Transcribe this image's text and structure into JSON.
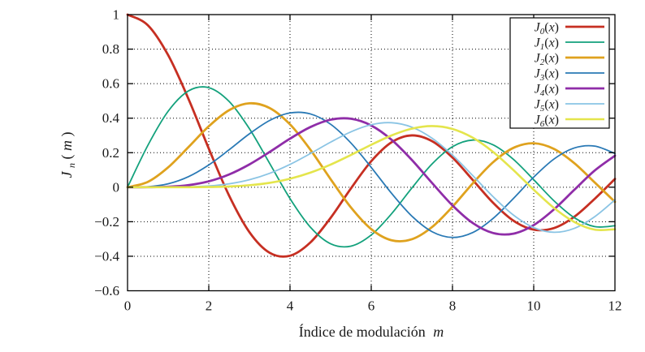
{
  "figure": {
    "background": "#ffffff",
    "border_color": "#000000",
    "grid_color": "#000000",
    "text_color": "#1a1a1a"
  },
  "chart_data": {
    "type": "line",
    "title": "",
    "xlabel": {
      "text": "Índice de modulación",
      "var": "m"
    },
    "ylabel": {
      "base": "J",
      "sub": "n",
      "open": "(",
      "var": "m",
      "close": ")"
    },
    "xlim": [
      0,
      12
    ],
    "ylim": [
      -0.6,
      1
    ],
    "grid": "dotted major gridlines both axes",
    "legend_position": "top-right boxed",
    "xticks": {
      "values": [
        0,
        2,
        4,
        6,
        8,
        10,
        12
      ],
      "labels": [
        "0",
        "2",
        "4",
        "6",
        "8",
        "10",
        "12"
      ]
    },
    "yticks": {
      "values": [
        1,
        0.8,
        0.6,
        0.4,
        0.2,
        0,
        -0.2,
        -0.4,
        -0.6
      ],
      "labels": [
        "1",
        "0.8",
        "0.6",
        "0.4",
        "0.2",
        "0",
        "−0.2",
        "−0.4",
        "−0.6"
      ]
    },
    "x": [
      0,
      0.5,
      1,
      1.5,
      2,
      2.5,
      3,
      3.5,
      4,
      4.5,
      5,
      5.5,
      6,
      6.5,
      7,
      7.5,
      8,
      8.5,
      9,
      9.5,
      10,
      10.5,
      11,
      11.5,
      12
    ],
    "series": [
      {
        "label": {
          "base": "J",
          "sub": "0",
          "open": "(",
          "var": "x",
          "close": ")"
        },
        "color": "#c62f22",
        "width": 2.8,
        "values": [
          1.0,
          0.9385,
          0.7652,
          0.5118,
          0.2239,
          -0.0484,
          -0.2601,
          -0.3801,
          -0.3971,
          -0.3205,
          -0.1776,
          -0.0068,
          0.1506,
          0.2601,
          0.3001,
          0.2663,
          0.1717,
          0.0419,
          -0.0903,
          -0.1939,
          -0.2459,
          -0.2366,
          -0.1712,
          -0.0677,
          0.0477
        ]
      },
      {
        "label": {
          "base": "J",
          "sub": "1",
          "open": "(",
          "var": "x",
          "close": ")"
        },
        "color": "#13a17c",
        "width": 1.8,
        "values": [
          0,
          0.2423,
          0.4401,
          0.5579,
          0.5767,
          0.4971,
          0.3391,
          0.1374,
          -0.066,
          -0.2311,
          -0.3276,
          -0.3414,
          -0.2767,
          -0.1538,
          -0.0047,
          0.1352,
          0.2346,
          0.2731,
          0.2453,
          0.1613,
          0.0435,
          -0.0789,
          -0.1768,
          -0.2284,
          -0.2234
        ]
      },
      {
        "label": {
          "base": "J",
          "sub": "2",
          "open": "(",
          "var": "x",
          "close": ")"
        },
        "color": "#dfa21e",
        "width": 2.8,
        "values": [
          0,
          0.0306,
          0.1149,
          0.2321,
          0.3528,
          0.4461,
          0.4861,
          0.4586,
          0.3641,
          0.2178,
          0.0466,
          -0.1173,
          -0.2429,
          -0.3074,
          -0.3014,
          -0.2303,
          -0.113,
          0.0224,
          0.1448,
          0.2279,
          0.2546,
          0.2216,
          0.139,
          0.0279,
          -0.0849
        ]
      },
      {
        "label": {
          "base": "J",
          "sub": "3",
          "open": "(",
          "var": "x",
          "close": ")"
        },
        "color": "#2979b5",
        "width": 1.8,
        "values": [
          0,
          0.0026,
          0.0196,
          0.061,
          0.1289,
          0.2166,
          0.3091,
          0.3868,
          0.4302,
          0.4247,
          0.3648,
          0.2561,
          0.1148,
          -0.0353,
          -0.1676,
          -0.2581,
          -0.2911,
          -0.2626,
          -0.1809,
          -0.0653,
          0.0584,
          0.1633,
          0.2273,
          0.2381,
          0.1951
        ]
      },
      {
        "label": {
          "base": "J",
          "sub": "4",
          "open": "(",
          "var": "x",
          "close": ")"
        },
        "color": "#8f2da8",
        "width": 2.8,
        "values": [
          0,
          0.0002,
          0.0025,
          0.0118,
          0.034,
          0.0738,
          0.132,
          0.2044,
          0.2811,
          0.3484,
          0.3912,
          0.3967,
          0.3576,
          0.2748,
          0.1578,
          0.0238,
          -0.1054,
          -0.2077,
          -0.2655,
          -0.2691,
          -0.2196,
          -0.1283,
          -0.015,
          0.0963,
          0.1825
        ]
      },
      {
        "label": {
          "base": "J",
          "sub": "5",
          "open": "(",
          "var": "x",
          "close": ")"
        },
        "color": "#8ac4e4",
        "width": 1.8,
        "values": [
          0,
          0.0,
          0.0002,
          0.0018,
          0.007,
          0.0195,
          0.043,
          0.0804,
          0.1321,
          0.1947,
          0.2611,
          0.3209,
          0.3621,
          0.3736,
          0.3479,
          0.2835,
          0.1858,
          0.0672,
          -0.055,
          -0.1613,
          -0.2341,
          -0.2611,
          -0.2383,
          -0.1711,
          -0.0735
        ]
      },
      {
        "label": {
          "base": "J",
          "sub": "6",
          "open": "(",
          "var": "x",
          "close": ")"
        },
        "color": "#e4e54c",
        "width": 2.6,
        "values": [
          0,
          0.0,
          0.0,
          0.0002,
          0.0012,
          0.0042,
          0.0114,
          0.0254,
          0.0491,
          0.0843,
          0.131,
          0.1869,
          0.2458,
          0.2999,
          0.3392,
          0.3541,
          0.3376,
          0.2867,
          0.2043,
          0.0993,
          -0.0145,
          -0.1203,
          -0.2016,
          -0.2458,
          -0.2437
        ]
      }
    ]
  }
}
